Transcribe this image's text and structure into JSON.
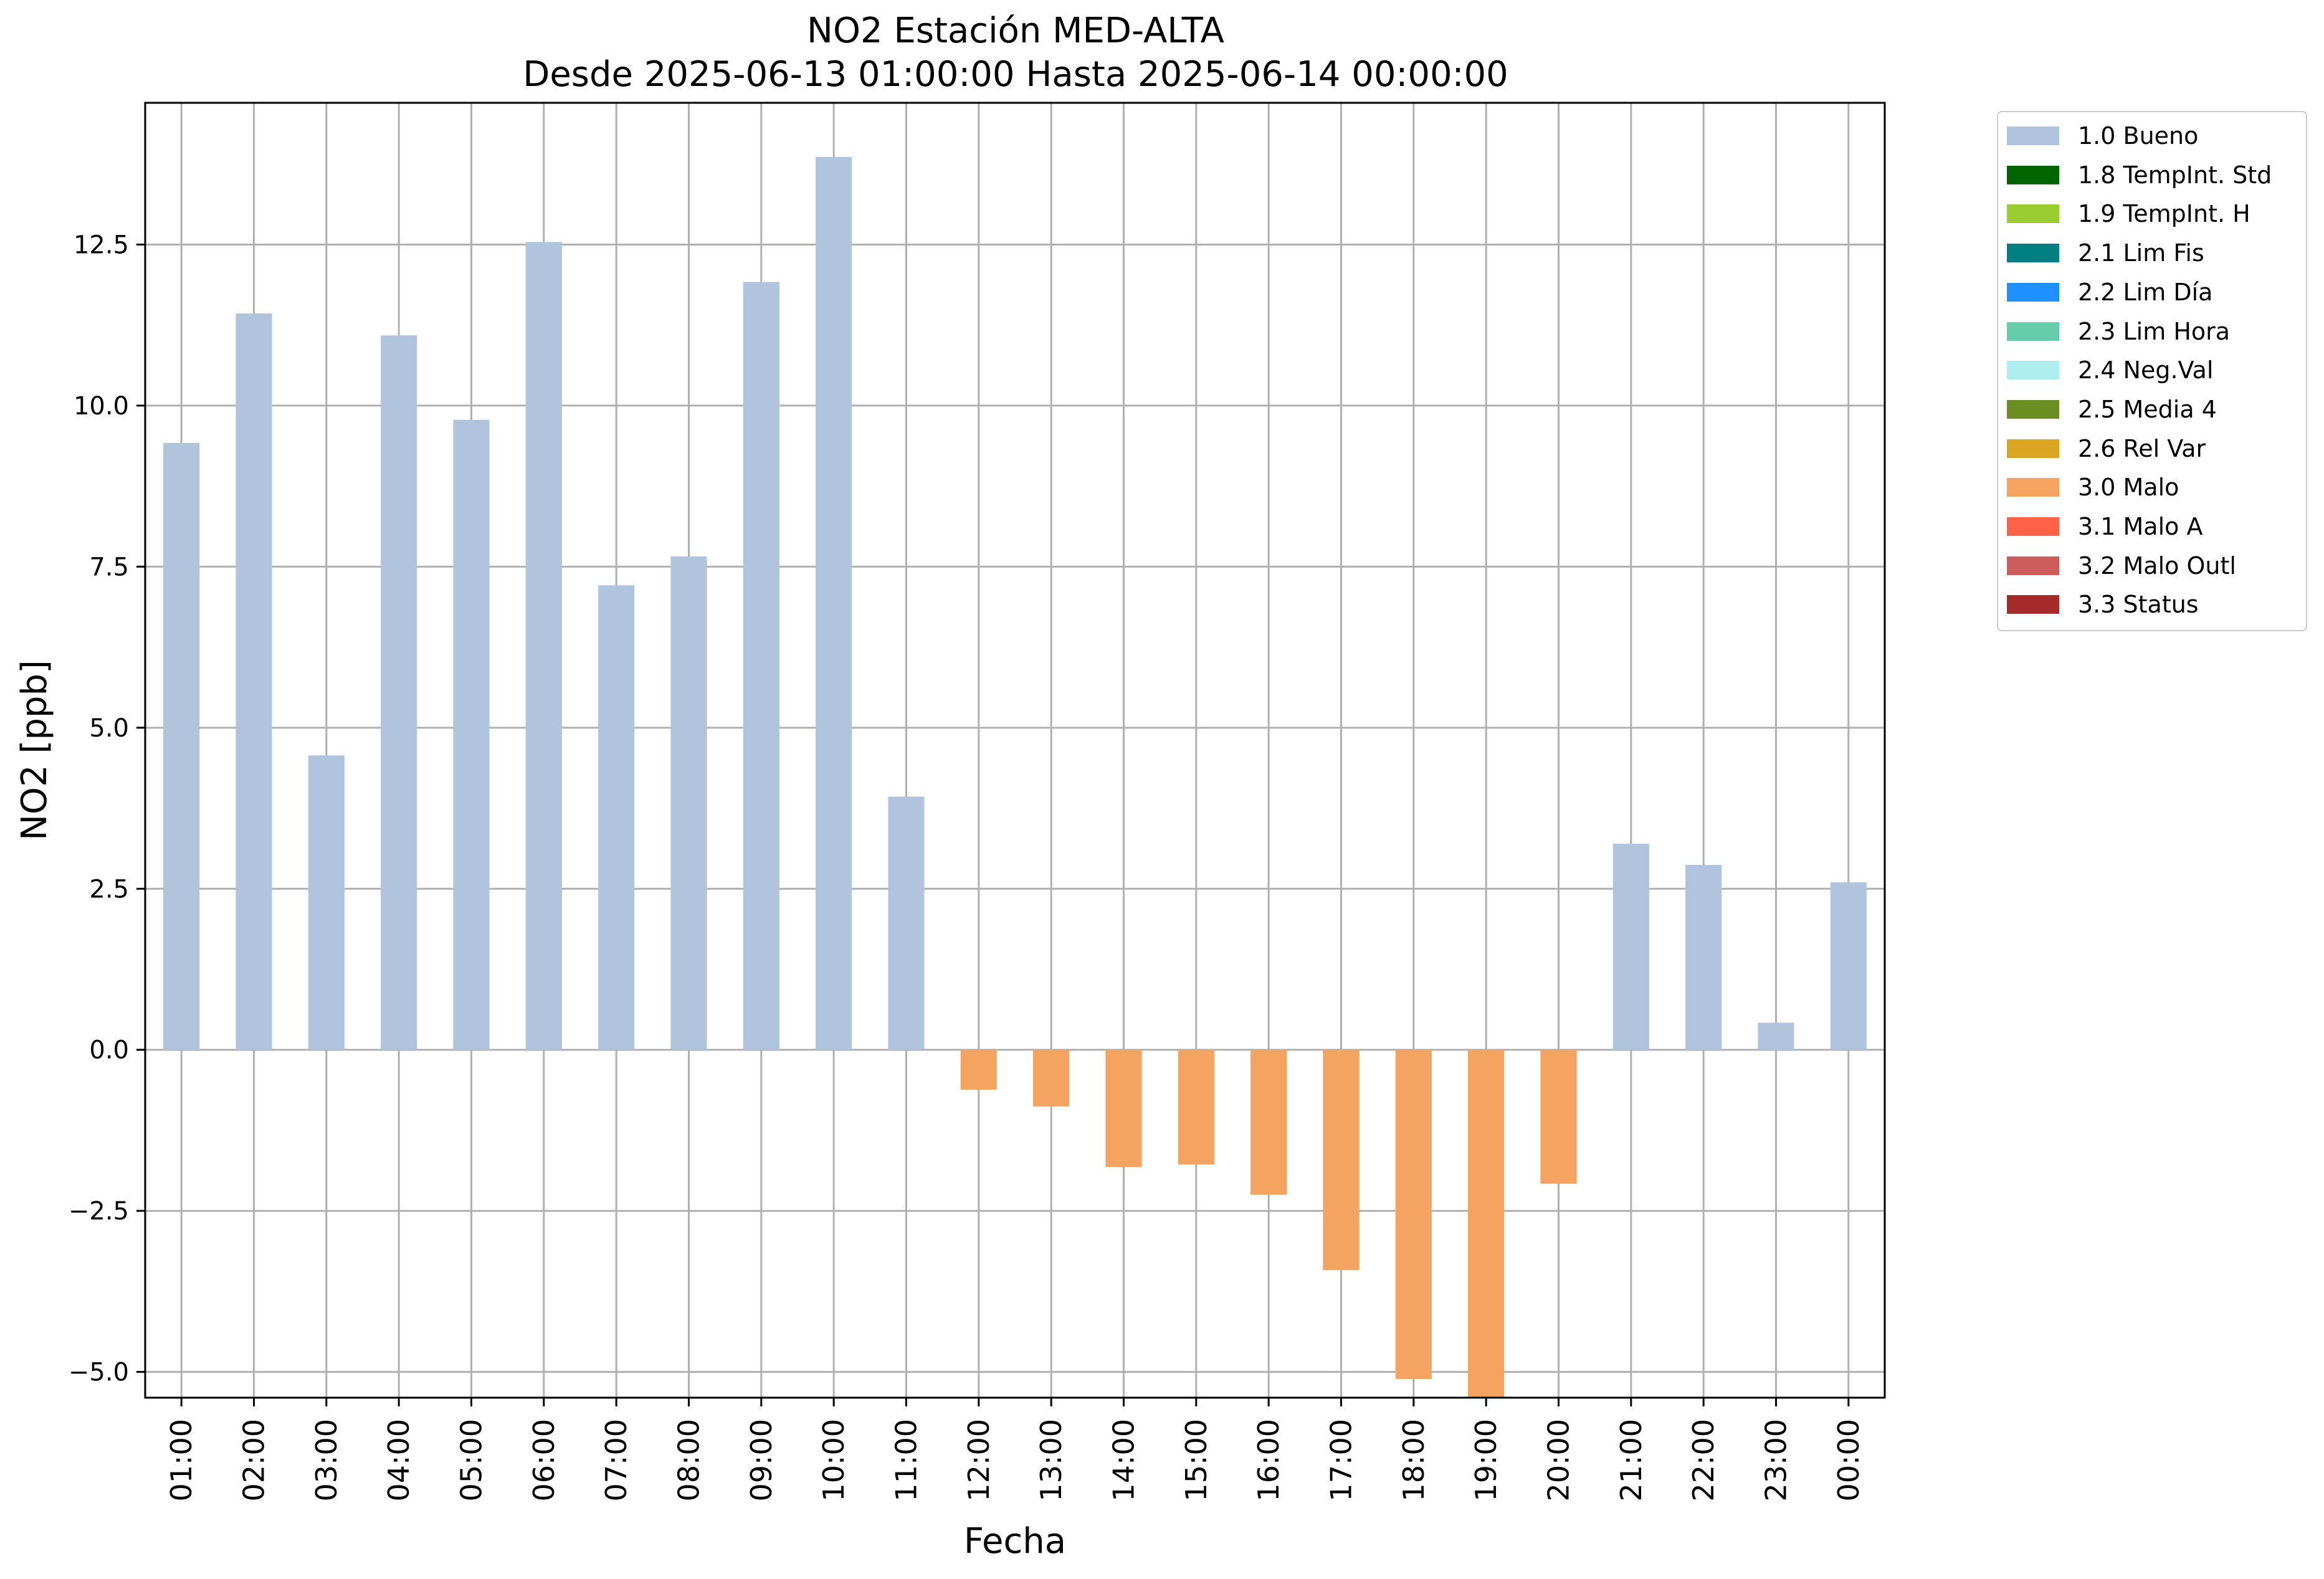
{
  "title": "NO2 Estación MED-ALTA",
  "subtitle": "Desde 2025-06-13 01:00:00 Hasta 2025-06-14 00:00:00",
  "colors": {
    "bueno": "#b0c4de",
    "malo": "#f4a460"
  },
  "legend": [
    {
      "label": "1.0 Bueno",
      "color": "#b0c4de"
    },
    {
      "label": "1.8 TempInt. Std",
      "color": "#006400"
    },
    {
      "label": "1.9 TempInt. H",
      "color": "#9acd32"
    },
    {
      "label": "2.1 Lim Fis",
      "color": "#008080"
    },
    {
      "label": "2.2 Lim Día",
      "color": "#1e90ff"
    },
    {
      "label": "2.3 Lim Hora",
      "color": "#66cdaa"
    },
    {
      "label": "2.4 Neg.Val",
      "color": "#afeeee"
    },
    {
      "label": "2.5 Media 4",
      "color": "#6b8e23"
    },
    {
      "label": "2.6 Rel Var",
      "color": "#daa520"
    },
    {
      "label": "3.0 Malo",
      "color": "#f4a460"
    },
    {
      "label": "3.1 Malo A",
      "color": "#ff6347"
    },
    {
      "label": "3.2 Malo Outl",
      "color": "#cd5c5c"
    },
    {
      "label": "3.3 Status",
      "color": "#a52a2a"
    }
  ],
  "chart_data": {
    "type": "bar",
    "title": "NO2 Estación MED-ALTA",
    "subtitle": "Desde 2025-06-13 01:00:00 Hasta 2025-06-14 00:00:00",
    "xlabel": "Fecha",
    "ylabel": "NO2 [ppb]",
    "ylim": [
      -5.4,
      14.7
    ],
    "yticks": [
      -5.0,
      -2.5,
      0.0,
      2.5,
      5.0,
      7.5,
      10.0,
      12.5
    ],
    "ytick_labels": [
      "−5.0",
      "−2.5",
      "0.0",
      "2.5",
      "5.0",
      "7.5",
      "10.0",
      "12.5"
    ],
    "grid": true,
    "legend_position": "outside-top-right",
    "categories": [
      "01:00",
      "02:00",
      "03:00",
      "04:00",
      "05:00",
      "06:00",
      "07:00",
      "08:00",
      "09:00",
      "10:00",
      "11:00",
      "12:00",
      "13:00",
      "14:00",
      "15:00",
      "16:00",
      "17:00",
      "18:00",
      "19:00",
      "20:00",
      "21:00",
      "22:00",
      "23:00",
      "00:00"
    ],
    "values": [
      9.42,
      11.43,
      4.57,
      11.09,
      9.78,
      12.54,
      7.21,
      7.66,
      11.92,
      13.86,
      3.93,
      -0.62,
      -0.88,
      -1.82,
      -1.78,
      -2.25,
      -3.42,
      -5.11,
      -5.4,
      -2.08,
      3.2,
      2.87,
      0.42,
      2.6
    ],
    "flags": [
      "1.0 Bueno",
      "1.0 Bueno",
      "1.0 Bueno",
      "1.0 Bueno",
      "1.0 Bueno",
      "1.0 Bueno",
      "1.0 Bueno",
      "1.0 Bueno",
      "1.0 Bueno",
      "1.0 Bueno",
      "1.0 Bueno",
      "3.0 Malo",
      "3.0 Malo",
      "3.0 Malo",
      "3.0 Malo",
      "3.0 Malo",
      "3.0 Malo",
      "3.0 Malo",
      "3.0 Malo",
      "3.0 Malo",
      "1.0 Bueno",
      "1.0 Bueno",
      "1.0 Bueno",
      "1.0 Bueno"
    ]
  }
}
